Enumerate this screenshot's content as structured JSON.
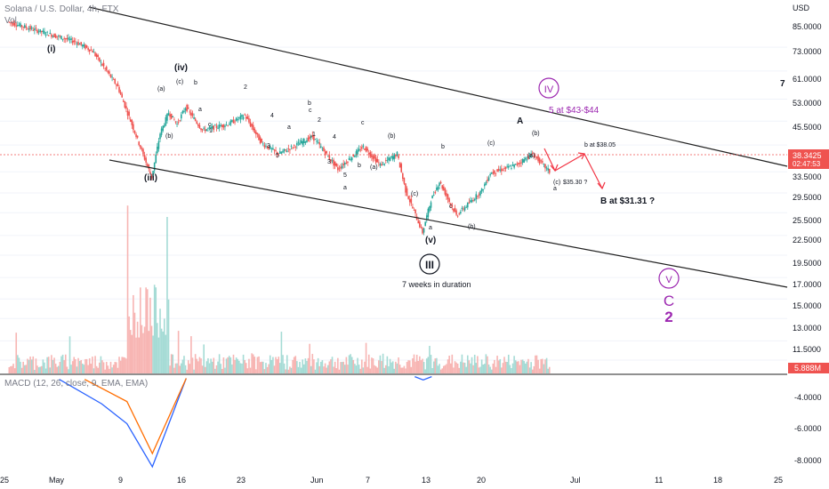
{
  "header": {
    "symbol": "Solana / U.S. Dollar, 4h, FTX",
    "vol_label": "Vol",
    "macd_label": "MACD (12, 26, close, 9, EMA, EMA)"
  },
  "price_axis": {
    "currency": "USD",
    "ticks": [
      "85.0000",
      "73.0000",
      "61.0000",
      "53.0000",
      "45.5000",
      "38.3425",
      "33.5000",
      "29.5000",
      "25.5000",
      "22.5000",
      "19.5000",
      "17.0000",
      "15.0000",
      "13.0000",
      "11.5000"
    ],
    "current_price": "38.3425",
    "countdown": "02:47:53",
    "volume_badge": "5.888M"
  },
  "macd_axis": {
    "ticks": [
      "-4.0000",
      "-6.0000",
      "-8.0000"
    ]
  },
  "time_axis": {
    "ticks": [
      "25",
      "May",
      "9",
      "16",
      "23",
      "Jun",
      "7",
      "13",
      "20",
      "Jul",
      "11",
      "18",
      "25"
    ]
  },
  "annotations": {
    "wave_i": "(i)",
    "wave_iii": "(iii)",
    "wave_iv": "(iv)",
    "wave_v": "(v)",
    "wave_III": "III",
    "duration": "7 weeks in duration",
    "wave_A": "A",
    "wave_IV": "IV",
    "wave_IV_target": "5 at $43-$44",
    "wave_V": "V",
    "wave_C": "C",
    "wave_2": "2",
    "b_target": "b at $38.05",
    "c_target": "$35.30 ?",
    "c_label": "(c)",
    "a_label": "a",
    "B_target": "B at $31.31 ?",
    "b_paren": "(b)",
    "a_paren": "(a)",
    "c_paren": "(c)",
    "seven": "7",
    "small_labels": [
      "(a)",
      "(b)",
      "(c)",
      "b",
      "a",
      "c",
      "1",
      "2",
      "3",
      "4",
      "5",
      "a",
      "b",
      "c",
      "1",
      "2",
      "3",
      "4",
      "5",
      "a",
      "b",
      "c",
      "(a)",
      "(b)",
      "(c)",
      "a",
      "b",
      "c"
    ]
  },
  "colors": {
    "up": "#26a69a",
    "down": "#ef5350",
    "purple": "#9c27b0",
    "macd": "#2962ff",
    "signal": "#ff6d00",
    "arrow": "#f23645"
  },
  "chart_data": {
    "type": "candlestick",
    "title": "Solana / U.S. Dollar, 4h, FTX",
    "y_scale": "log",
    "y_unit": "USD",
    "x_range": [
      "2022-04-25",
      "2022-07-25"
    ],
    "swing_points": [
      {
        "date": "2022-04-25",
        "price": 100
      },
      {
        "date": "2022-05-03",
        "price": 88
      },
      {
        "date": "2022-05-05",
        "price": 83
      },
      {
        "date": "2022-05-08",
        "price": 66
      },
      {
        "date": "2022-05-12",
        "price": 37
      },
      {
        "date": "2022-05-13",
        "price": 49
      },
      {
        "date": "2022-05-14",
        "price": 56
      },
      {
        "date": "2022-05-15",
        "price": 52
      },
      {
        "date": "2022-05-16",
        "price": 58
      },
      {
        "date": "2022-05-18",
        "price": 50
      },
      {
        "date": "2022-05-21",
        "price": 52
      },
      {
        "date": "2022-05-23",
        "price": 55
      },
      {
        "date": "2022-05-25",
        "price": 46
      },
      {
        "date": "2022-05-27",
        "price": 43
      },
      {
        "date": "2022-05-31",
        "price": 48
      },
      {
        "date": "2022-06-03",
        "price": 39
      },
      {
        "date": "2022-06-06",
        "price": 45
      },
      {
        "date": "2022-06-08",
        "price": 40
      },
      {
        "date": "2022-06-10",
        "price": 43
      },
      {
        "date": "2022-06-11",
        "price": 34
      },
      {
        "date": "2022-06-13",
        "price": 26
      },
      {
        "date": "2022-06-14",
        "price": 32
      },
      {
        "date": "2022-06-15",
        "price": 36
      },
      {
        "date": "2022-06-17",
        "price": 29
      },
      {
        "date": "2022-06-20",
        "price": 34
      },
      {
        "date": "2022-06-21",
        "price": 38
      },
      {
        "date": "2022-06-24",
        "price": 40
      },
      {
        "date": "2022-06-26",
        "price": 43
      },
      {
        "date": "2022-06-28",
        "price": 38.34
      }
    ],
    "volume_max": "5.888M",
    "macd": {
      "macd_series": [
        [
          -0.3,
          "2022-05-01"
        ],
        [
          -2.5,
          "2022-05-06"
        ],
        [
          -4.3,
          "2022-05-09"
        ],
        [
          -8.2,
          "2022-05-12"
        ],
        [
          -0.2,
          "2022-05-16"
        ]
      ],
      "signal_series": [
        [
          -0.3,
          "2022-05-04"
        ],
        [
          -2.3,
          "2022-05-09"
        ],
        [
          -7.0,
          "2022-05-12"
        ],
        [
          -0.2,
          "2022-05-16"
        ]
      ]
    },
    "projection": [
      {
        "label": "(c)",
        "price": 35.3
      },
      {
        "label": "b",
        "price": 38.05
      },
      {
        "label": "B",
        "price": 31.31
      }
    ]
  }
}
